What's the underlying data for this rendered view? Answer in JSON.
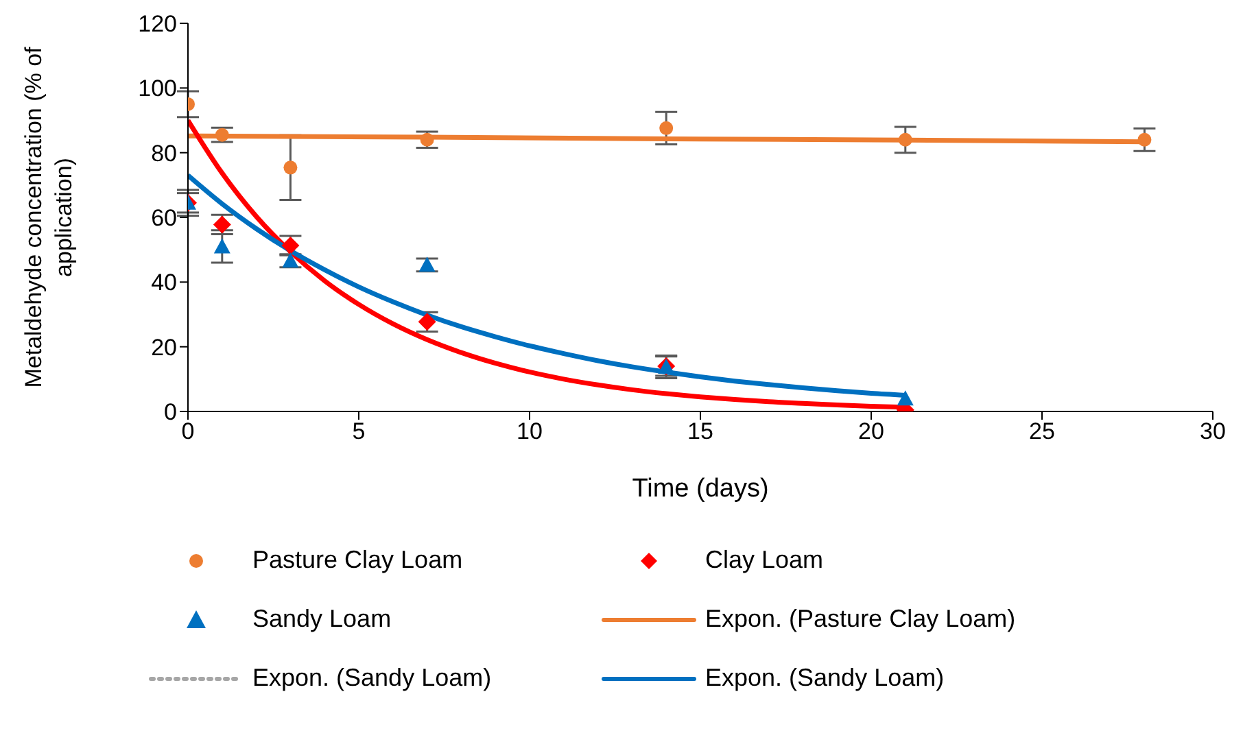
{
  "chart_data": {
    "type": "scatter",
    "xlabel": "Time (days)",
    "ylabel": "Metaldehyde concentration (% of application)",
    "xlim": [
      0,
      30
    ],
    "xticks": [
      0,
      5,
      10,
      15,
      20,
      25,
      30
    ],
    "ylim": [
      0,
      120
    ],
    "yticks": [
      0,
      20,
      40,
      60,
      80,
      100,
      120
    ],
    "grid": false,
    "legend": "bottom",
    "series": [
      {
        "name": "Pasture Clay Loam",
        "marker": "circle",
        "color": "#ed7d31",
        "x": [
          0,
          1,
          3,
          7,
          14,
          21,
          28
        ],
        "values": [
          95,
          85.5,
          75.4,
          84,
          87.6,
          84,
          84
        ],
        "errors": [
          4,
          2.2,
          10,
          2.5,
          5,
          4,
          3.5
        ]
      },
      {
        "name": "Clay Loam",
        "marker": "diamond",
        "color": "#ff0000",
        "x": [
          0,
          1,
          3,
          7,
          14,
          21
        ],
        "values": [
          64.5,
          57.8,
          51.3,
          27.7,
          14,
          0.5
        ],
        "errors": [
          3,
          3,
          3,
          3,
          3,
          null
        ]
      },
      {
        "name": "Sandy Loam",
        "marker": "triangle",
        "color": "#0070c0",
        "x": [
          0,
          1,
          3,
          7,
          14,
          21
        ],
        "values": [
          64.5,
          51,
          46.6,
          45.3,
          13.8,
          4
        ],
        "errors": [
          4,
          5,
          2,
          2,
          3.5,
          null
        ]
      },
      {
        "name": "Expon. (Pasture Clay Loam)",
        "type": "line",
        "line_style": "solid",
        "color": "#ed7d31",
        "x": [
          0,
          7,
          14,
          21,
          28
        ],
        "values": [
          85.2,
          84.8,
          84.3,
          83.9,
          83.4
        ]
      },
      {
        "type": "line",
        "line_style": "solid",
        "color": "#ff0000",
        "x": [
          0,
          1,
          2,
          3,
          4,
          5,
          6,
          7,
          8,
          9,
          10,
          11,
          12,
          13,
          14,
          15,
          16,
          17,
          18,
          19,
          20,
          21
        ],
        "values": [
          90,
          73.7,
          60.3,
          49.4,
          40.4,
          33.1,
          27.1,
          22.2,
          18.2,
          14.9,
          12.2,
          10.0,
          8.2,
          6.7,
          5.5,
          4.5,
          3.7,
          3.0,
          2.5,
          2.0,
          1.6,
          1.3
        ]
      },
      {
        "name": "Expon. (Sandy Loam)",
        "type": "line",
        "line_style": "dotted",
        "color": "#a6a6a6"
      },
      {
        "name": "Expon. (Sandy Loam)",
        "type": "line",
        "line_style": "solid",
        "color": "#0070c0",
        "x": [
          0,
          1,
          2,
          3,
          4,
          5,
          6,
          7,
          8,
          9,
          10,
          11,
          12,
          13,
          14,
          15,
          16,
          17,
          18,
          19,
          20,
          21
        ],
        "values": [
          73,
          64.2,
          56.5,
          49.7,
          43.8,
          38.5,
          33.9,
          29.8,
          26.2,
          23.1,
          20.3,
          17.9,
          15.7,
          13.8,
          12.2,
          10.7,
          9.4,
          8.3,
          7.3,
          6.4,
          5.6,
          5.0
        ]
      }
    ]
  }
}
